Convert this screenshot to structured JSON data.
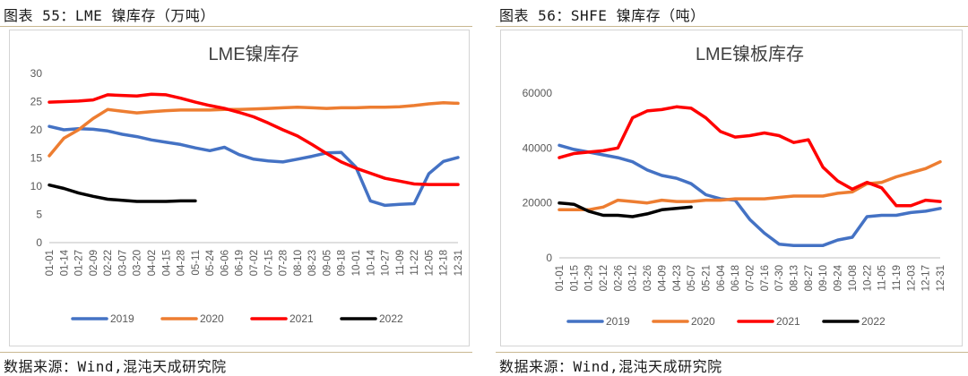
{
  "panels": [
    {
      "heading": "图表 55：LME 镍库存（万吨）",
      "source": "数据来源：Wind,混沌天成研究院"
    },
    {
      "heading": "图表 56：SHFE 镍库存（吨）",
      "source": "数据来源：Wind,混沌天成研究院"
    }
  ],
  "chart_data": [
    {
      "type": "line",
      "title": "LME镍库存",
      "xlabel": "",
      "ylabel": "",
      "ylim": [
        0,
        30
      ],
      "yticks": [
        0,
        5,
        10,
        15,
        20,
        25,
        30
      ],
      "grid": false,
      "legend_position": "bottom",
      "x": [
        "01-01",
        "01-14",
        "01-27",
        "02-09",
        "02-22",
        "03-07",
        "03-20",
        "04-02",
        "04-15",
        "04-28",
        "05-11",
        "05-24",
        "06-06",
        "06-19",
        "07-02",
        "07-15",
        "07-28",
        "08-10",
        "08-23",
        "09-05",
        "09-18",
        "10-01",
        "10-14",
        "10-27",
        "11-09",
        "11-22",
        "12-05",
        "12-18",
        "12-31"
      ],
      "series": [
        {
          "name": "2019",
          "color": "#4472c4",
          "values": [
            20.6,
            20.0,
            20.2,
            20.1,
            19.8,
            19.2,
            18.8,
            18.2,
            17.8,
            17.4,
            16.8,
            16.3,
            16.9,
            15.6,
            14.8,
            14.5,
            14.3,
            14.8,
            15.3,
            15.9,
            16.0,
            13.4,
            7.4,
            6.6,
            6.8,
            6.9,
            12.2,
            14.4,
            15.1
          ]
        },
        {
          "name": "2020",
          "color": "#ed7d31",
          "values": [
            15.4,
            18.5,
            20.0,
            22.0,
            23.6,
            23.3,
            23.0,
            23.2,
            23.4,
            23.5,
            23.5,
            23.5,
            23.6,
            23.6,
            23.7,
            23.8,
            23.9,
            24.0,
            23.9,
            23.8,
            23.9,
            23.9,
            24.0,
            24.0,
            24.1,
            24.3,
            24.6,
            24.8,
            24.7
          ]
        },
        {
          "name": "2021",
          "color": "#ff0000",
          "values": [
            24.9,
            25.0,
            25.1,
            25.3,
            26.2,
            26.1,
            26.0,
            26.3,
            26.2,
            25.6,
            24.9,
            24.3,
            23.8,
            23.1,
            22.3,
            21.2,
            20.0,
            18.9,
            17.4,
            15.8,
            14.3,
            13.2,
            12.3,
            11.4,
            10.9,
            10.4,
            10.3,
            10.3,
            10.3
          ]
        },
        {
          "name": "2022",
          "color": "#000000",
          "values": [
            10.2,
            9.6,
            8.8,
            8.2,
            7.7,
            7.5,
            7.3,
            7.3,
            7.3,
            7.4,
            7.4,
            null,
            null,
            null,
            null,
            null,
            null,
            null,
            null,
            null,
            null,
            null,
            null,
            null,
            null,
            null,
            null,
            null,
            null
          ]
        }
      ]
    },
    {
      "type": "line",
      "title": "LME镍板库存",
      "xlabel": "",
      "ylabel": "",
      "ylim": [
        0,
        60000
      ],
      "yticks": [
        0,
        20000,
        40000,
        60000
      ],
      "grid": false,
      "legend_position": "bottom",
      "x": [
        "01-01",
        "01-15",
        "01-29",
        "02-12",
        "02-26",
        "03-12",
        "03-26",
        "04-09",
        "04-23",
        "05-07",
        "05-21",
        "06-04",
        "06-18",
        "07-02",
        "07-16",
        "07-30",
        "08-13",
        "08-27",
        "09-10",
        "09-24",
        "10-08",
        "10-22",
        "11-05",
        "11-19",
        "12-03",
        "12-17",
        "12-31"
      ],
      "series": [
        {
          "name": "2019",
          "color": "#4472c4",
          "values": [
            41000,
            39500,
            38500,
            37500,
            36500,
            35000,
            32000,
            30000,
            29000,
            27000,
            23000,
            21500,
            21000,
            14000,
            9000,
            5000,
            4500,
            4500,
            4500,
            6500,
            7500,
            15000,
            15500,
            15500,
            16500,
            17000,
            18000
          ]
        },
        {
          "name": "2020",
          "color": "#ed7d31",
          "values": [
            17500,
            17500,
            17500,
            18500,
            21000,
            20500,
            20000,
            21000,
            20500,
            20500,
            21000,
            21000,
            21500,
            21500,
            21500,
            22000,
            22500,
            22500,
            22500,
            23500,
            24000,
            27000,
            27500,
            29500,
            31000,
            32500,
            35000
          ]
        },
        {
          "name": "2021",
          "color": "#ff0000",
          "values": [
            36500,
            38000,
            38500,
            39000,
            40000,
            51000,
            53500,
            54000,
            55000,
            54500,
            51000,
            46000,
            44000,
            44500,
            45500,
            44500,
            42000,
            43000,
            33000,
            28000,
            25000,
            27500,
            25500,
            19000,
            19000,
            21000,
            20500
          ]
        },
        {
          "name": "2022",
          "color": "#000000",
          "values": [
            20000,
            19500,
            17000,
            15500,
            15500,
            15000,
            16000,
            17500,
            18000,
            18500,
            null,
            null,
            null,
            null,
            null,
            null,
            null,
            null,
            null,
            null,
            null,
            null,
            null,
            null,
            null,
            null,
            null
          ]
        }
      ]
    }
  ]
}
